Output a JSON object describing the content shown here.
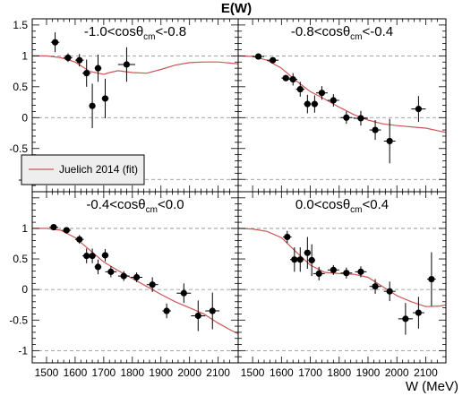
{
  "title": "E(W)",
  "xlabel": "W (MeV)",
  "colors": {
    "curve": "#cc5555",
    "points": "#000000",
    "frame": "#000000",
    "grid": "#888888",
    "legend_bg": "#eeeeee"
  },
  "legend": {
    "label": "Juelich 2014 (fit)",
    "placement": "lower-left of top-left panel"
  },
  "chart_data": {
    "type": "scatter",
    "title": "E(W)",
    "xlabel": "W (MeV)",
    "ylabel": "",
    "xlim": [
      1450,
      2170
    ],
    "ylim": [
      -1.2,
      1.6
    ],
    "xticks": [
      1500,
      1600,
      1700,
      1800,
      1900,
      2000,
      2100
    ],
    "yticks": [
      -1,
      -0.5,
      0,
      0.5,
      1,
      1.5
    ],
    "grid": "dashed horizontal lines at y = -1, 0, 1",
    "legend_placement": "lower-left of top-left panel",
    "panels": [
      {
        "label_prefix": "-1.0<cosθ",
        "label_sub": "cm",
        "label_suffix": "<-0.8",
        "points": [
          {
            "x": 1530,
            "y": 1.22,
            "xerr": 15,
            "yerr": 0.16
          },
          {
            "x": 1575,
            "y": 0.97,
            "xerr": 15,
            "yerr": 0.07
          },
          {
            "x": 1615,
            "y": 0.93,
            "xerr": 15,
            "yerr": 0.1
          },
          {
            "x": 1640,
            "y": 0.72,
            "xerr": 15,
            "yerr": 0.22
          },
          {
            "x": 1660,
            "y": 0.19,
            "xerr": 10,
            "yerr": 0.36
          },
          {
            "x": 1680,
            "y": 0.8,
            "xerr": 12,
            "yerr": 0.22
          },
          {
            "x": 1705,
            "y": 0.31,
            "xerr": 12,
            "yerr": 0.32
          },
          {
            "x": 1780,
            "y": 0.86,
            "xerr": 30,
            "yerr": 0.28
          }
        ],
        "curve": {
          "x": [
            1450,
            1500,
            1550,
            1600,
            1650,
            1700,
            1720,
            1750,
            1800,
            1850,
            1900,
            1950,
            2000,
            2050,
            2100,
            2150,
            2170
          ],
          "y": [
            1.0,
            1.0,
            0.97,
            0.9,
            0.75,
            0.7,
            0.73,
            0.76,
            0.73,
            0.72,
            0.78,
            0.85,
            0.89,
            0.9,
            0.9,
            0.88,
            0.87
          ]
        }
      },
      {
        "label_prefix": "-0.8<cosθ",
        "label_sub": "cm",
        "label_suffix": "<-0.4",
        "points": [
          {
            "x": 1520,
            "y": 0.99,
            "xerr": 20,
            "yerr": 0.04
          },
          {
            "x": 1570,
            "y": 0.93,
            "xerr": 20,
            "yerr": 0.03
          },
          {
            "x": 1615,
            "y": 0.64,
            "xerr": 15,
            "yerr": 0.05
          },
          {
            "x": 1640,
            "y": 0.62,
            "xerr": 15,
            "yerr": 0.1
          },
          {
            "x": 1665,
            "y": 0.46,
            "xerr": 15,
            "yerr": 0.12
          },
          {
            "x": 1690,
            "y": 0.22,
            "xerr": 12,
            "yerr": 0.15
          },
          {
            "x": 1715,
            "y": 0.22,
            "xerr": 12,
            "yerr": 0.14
          },
          {
            "x": 1740,
            "y": 0.4,
            "xerr": 20,
            "yerr": 0.11
          },
          {
            "x": 1780,
            "y": 0.28,
            "xerr": 20,
            "yerr": 0.1
          },
          {
            "x": 1825,
            "y": 0.0,
            "xerr": 20,
            "yerr": 0.1
          },
          {
            "x": 1875,
            "y": -0.01,
            "xerr": 25,
            "yerr": 0.12
          },
          {
            "x": 1925,
            "y": -0.2,
            "xerr": 20,
            "yerr": 0.16
          },
          {
            "x": 1975,
            "y": -0.38,
            "xerr": 20,
            "yerr": 0.36
          },
          {
            "x": 2075,
            "y": 0.14,
            "xerr": 25,
            "yerr": 0.21
          }
        ],
        "curve": {
          "x": [
            1450,
            1500,
            1550,
            1600,
            1650,
            1700,
            1750,
            1800,
            1850,
            1900,
            1950,
            2000,
            2050,
            2100,
            2150,
            2170
          ],
          "y": [
            1.0,
            0.99,
            0.93,
            0.8,
            0.6,
            0.42,
            0.3,
            0.17,
            0.05,
            -0.04,
            -0.1,
            -0.13,
            -0.15,
            -0.17,
            -0.22,
            -0.24
          ]
        }
      },
      {
        "label_prefix": "-0.4<cosθ",
        "label_sub": "cm",
        "label_suffix": "<0.0",
        "points": [
          {
            "x": 1525,
            "y": 1.02,
            "xerr": 15,
            "yerr": 0.03
          },
          {
            "x": 1570,
            "y": 0.97,
            "xerr": 15,
            "yerr": 0.03
          },
          {
            "x": 1615,
            "y": 0.82,
            "xerr": 15,
            "yerr": 0.07
          },
          {
            "x": 1640,
            "y": 0.55,
            "xerr": 15,
            "yerr": 0.12
          },
          {
            "x": 1660,
            "y": 0.55,
            "xerr": 12,
            "yerr": 0.12
          },
          {
            "x": 1680,
            "y": 0.37,
            "xerr": 12,
            "yerr": 0.12
          },
          {
            "x": 1705,
            "y": 0.56,
            "xerr": 12,
            "yerr": 0.1
          },
          {
            "x": 1725,
            "y": 0.29,
            "xerr": 20,
            "yerr": 0.09
          },
          {
            "x": 1770,
            "y": 0.22,
            "xerr": 20,
            "yerr": 0.08
          },
          {
            "x": 1815,
            "y": 0.2,
            "xerr": 20,
            "yerr": 0.08
          },
          {
            "x": 1870,
            "y": 0.08,
            "xerr": 20,
            "yerr": 0.12
          },
          {
            "x": 1920,
            "y": -0.35,
            "xerr": 15,
            "yerr": 0.12
          },
          {
            "x": 1980,
            "y": -0.06,
            "xerr": 25,
            "yerr": 0.16
          },
          {
            "x": 2030,
            "y": -0.43,
            "xerr": 25,
            "yerr": 0.25
          },
          {
            "x": 2080,
            "y": -0.35,
            "xerr": 25,
            "yerr": 0.3
          }
        ],
        "curve": {
          "x": [
            1450,
            1500,
            1550,
            1600,
            1650,
            1700,
            1750,
            1800,
            1850,
            1900,
            1950,
            2000,
            2050,
            2100,
            2150,
            2170
          ],
          "y": [
            1.0,
            1.0,
            0.97,
            0.85,
            0.65,
            0.45,
            0.31,
            0.18,
            0.05,
            -0.08,
            -0.2,
            -0.3,
            -0.4,
            -0.55,
            -0.68,
            -0.72
          ]
        }
      },
      {
        "label_prefix": "0.0<cosθ",
        "label_sub": "cm",
        "label_suffix": "<0.4",
        "points": [
          {
            "x": 1620,
            "y": 0.86,
            "xerr": 15,
            "yerr": 0.1
          },
          {
            "x": 1645,
            "y": 0.49,
            "xerr": 15,
            "yerr": 0.2
          },
          {
            "x": 1665,
            "y": 0.49,
            "xerr": 12,
            "yerr": 0.2
          },
          {
            "x": 1690,
            "y": 0.6,
            "xerr": 12,
            "yerr": 0.26
          },
          {
            "x": 1705,
            "y": 0.48,
            "xerr": 12,
            "yerr": 0.26
          },
          {
            "x": 1730,
            "y": 0.26,
            "xerr": 20,
            "yerr": 0.11
          },
          {
            "x": 1780,
            "y": 0.32,
            "xerr": 20,
            "yerr": 0.08
          },
          {
            "x": 1825,
            "y": 0.27,
            "xerr": 20,
            "yerr": 0.09
          },
          {
            "x": 1875,
            "y": 0.29,
            "xerr": 20,
            "yerr": 0.09
          },
          {
            "x": 1925,
            "y": 0.05,
            "xerr": 20,
            "yerr": 0.12
          },
          {
            "x": 1975,
            "y": -0.03,
            "xerr": 20,
            "yerr": 0.16
          },
          {
            "x": 2030,
            "y": -0.48,
            "xerr": 25,
            "yerr": 0.26
          },
          {
            "x": 2075,
            "y": -0.38,
            "xerr": 20,
            "yerr": 0.26
          },
          {
            "x": 2120,
            "y": 0.17,
            "xerr": 15,
            "yerr": 0.44
          }
        ],
        "curve": {
          "x": [
            1450,
            1500,
            1550,
            1600,
            1650,
            1700,
            1750,
            1800,
            1850,
            1900,
            1950,
            2000,
            2050,
            2100,
            2150,
            2170
          ],
          "y": [
            1.0,
            0.99,
            0.95,
            0.85,
            0.62,
            0.4,
            0.28,
            0.26,
            0.25,
            0.2,
            0.05,
            -0.1,
            -0.2,
            -0.28,
            -0.27,
            -0.25
          ]
        }
      }
    ]
  }
}
